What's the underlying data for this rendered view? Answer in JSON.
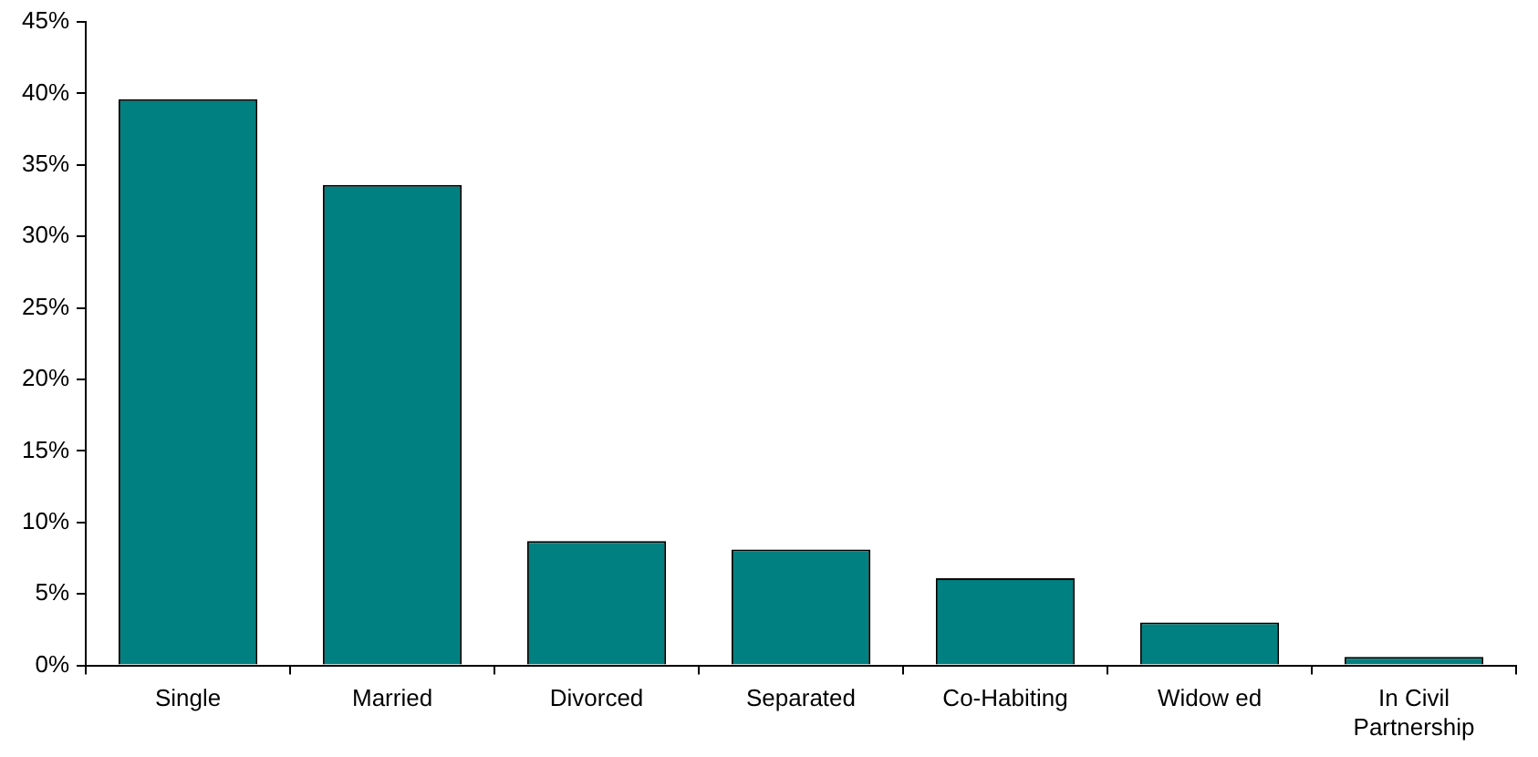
{
  "chart_data": {
    "type": "bar",
    "categories": [
      "Single",
      "Married",
      "Divorced",
      "Separated",
      "Co-Habiting",
      "Widow ed",
      "In Civil Partnership"
    ],
    "values": [
      39.6,
      33.6,
      8.7,
      8.1,
      6.1,
      3.0,
      0.6
    ],
    "color": "#008080",
    "ylim": [
      0,
      45
    ],
    "yticks": [
      {
        "value": 0,
        "label": "0%"
      },
      {
        "value": 5,
        "label": "5%"
      },
      {
        "value": 10,
        "label": "10%"
      },
      {
        "value": 15,
        "label": "15%"
      },
      {
        "value": 20,
        "label": "20%"
      },
      {
        "value": 25,
        "label": "25%"
      },
      {
        "value": 30,
        "label": "30%"
      },
      {
        "value": 35,
        "label": "35%"
      },
      {
        "value": 40,
        "label": "40%"
      },
      {
        "value": 45,
        "label": "45%"
      }
    ],
    "legend": false
  }
}
